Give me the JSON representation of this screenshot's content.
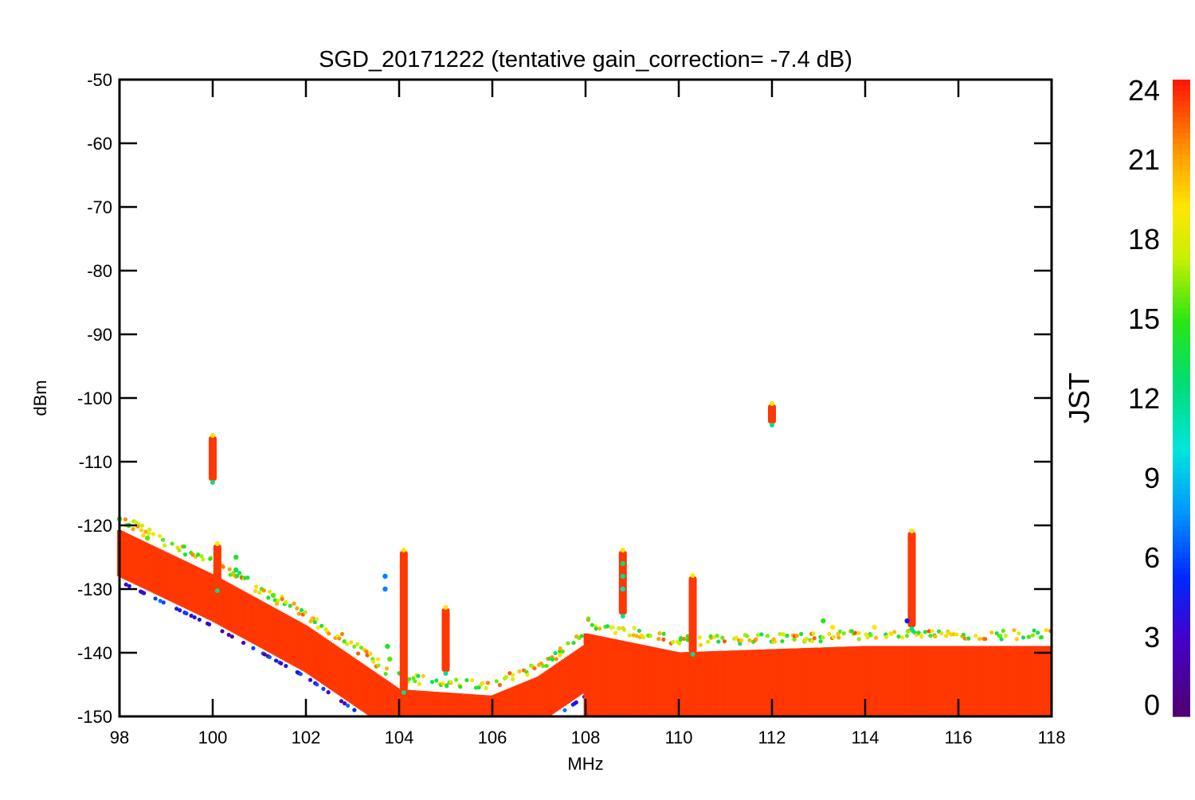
{
  "chart_data": {
    "type": "scatter",
    "title": "SGD_20171222 (tentative gain_correction= -7.4 dB)",
    "xlabel": "MHz",
    "ylabel": "dBm",
    "xlim": [
      98,
      118
    ],
    "ylim": [
      -150,
      -50
    ],
    "xticks": [
      98,
      100,
      102,
      104,
      106,
      108,
      110,
      112,
      114,
      116,
      118
    ],
    "yticks": [
      -50,
      -60,
      -70,
      -80,
      -90,
      -100,
      -110,
      -120,
      -130,
      -140,
      -150
    ],
    "colorbar": {
      "label": "JST",
      "range": [
        0,
        24
      ],
      "ticks": [
        0,
        3,
        6,
        9,
        12,
        15,
        18,
        21,
        24
      ],
      "colormap": "rainbow (purple-blue-cyan-green-yellow-orange-red)"
    },
    "series_summary": {
      "description_points": [
        {
          "mhz": 98.0,
          "dbm": -123
        },
        {
          "mhz": 100.0,
          "dbm": -130
        },
        {
          "mhz": 102.0,
          "dbm": -138
        },
        {
          "mhz": 104.0,
          "dbm": -148
        },
        {
          "mhz": 106.0,
          "dbm": -149
        },
        {
          "mhz": 107.0,
          "dbm": -146
        },
        {
          "mhz": 108.0,
          "dbm": -141
        },
        {
          "mhz": 110.0,
          "dbm": -144
        },
        {
          "mhz": 114.0,
          "dbm": -143
        },
        {
          "mhz": 118.0,
          "dbm": -143
        }
      ],
      "peaks": [
        {
          "mhz": 100.0,
          "dbm_top": -106,
          "dbm_bottom": -113
        },
        {
          "mhz": 100.1,
          "dbm_top": -123,
          "dbm_bottom": -130
        },
        {
          "mhz": 104.1,
          "dbm_top": -124,
          "dbm_bottom": -146
        },
        {
          "mhz": 105.0,
          "dbm_top": -133,
          "dbm_bottom": -143
        },
        {
          "mhz": 108.8,
          "dbm_top": -124,
          "dbm_bottom": -134
        },
        {
          "mhz": 110.3,
          "dbm_top": -128,
          "dbm_bottom": -140
        },
        {
          "mhz": 112.0,
          "dbm_top": -101,
          "dbm_bottom": -104
        },
        {
          "mhz": 115.0,
          "dbm_top": -121,
          "dbm_bottom": -136
        }
      ]
    }
  }
}
